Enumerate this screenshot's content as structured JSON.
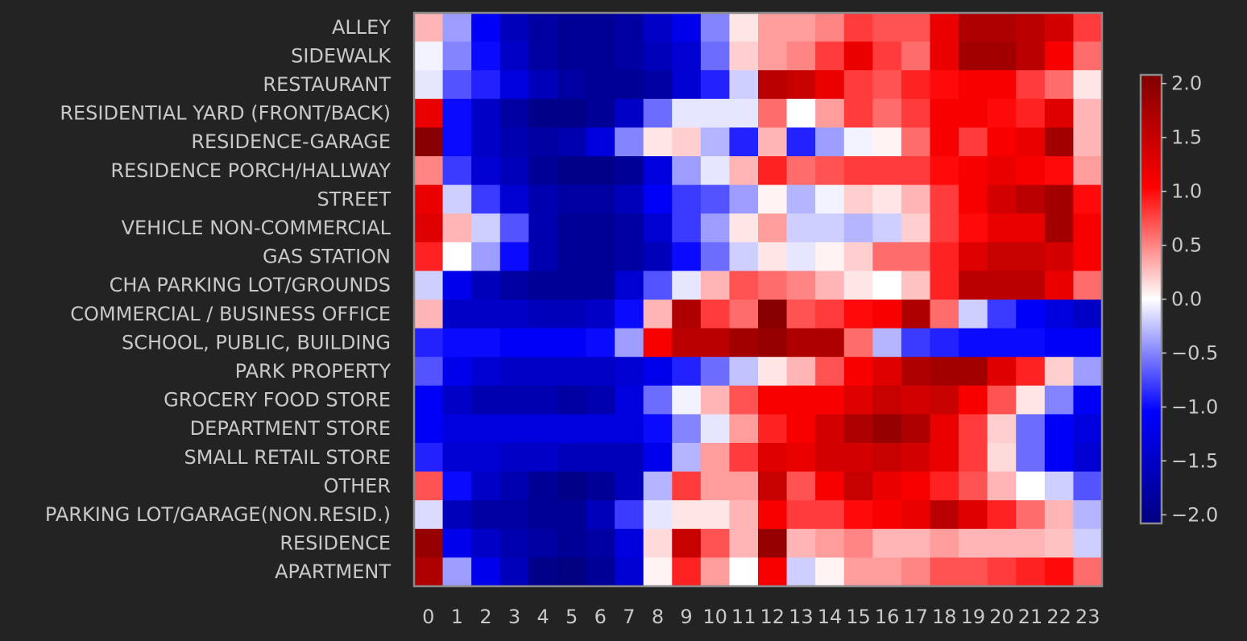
{
  "chart_data": {
    "type": "heatmap",
    "title": "",
    "xlabel": "",
    "ylabel": "",
    "x_categories": [
      "0",
      "1",
      "2",
      "3",
      "4",
      "5",
      "6",
      "7",
      "8",
      "9",
      "10",
      "11",
      "12",
      "13",
      "14",
      "15",
      "16",
      "17",
      "18",
      "19",
      "20",
      "21",
      "22",
      "23"
    ],
    "y_categories": [
      "ALLEY",
      "SIDEWALK",
      "RESTAURANT",
      "RESIDENTIAL YARD (FRONT/BACK)",
      "RESIDENCE-GARAGE",
      "RESIDENCE PORCH/HALLWAY",
      "STREET",
      "VEHICLE NON-COMMERCIAL",
      "GAS STATION",
      "CHA PARKING LOT/GROUNDS",
      "COMMERCIAL / BUSINESS OFFICE",
      "SCHOOL, PUBLIC, BUILDING",
      "PARK PROPERTY",
      "GROCERY FOOD STORE",
      "DEPARTMENT STORE",
      "SMALL RETAIL STORE",
      "OTHER",
      "PARKING LOT/GARAGE(NON.RESID.)",
      "RESIDENCE",
      "APARTMENT"
    ],
    "values": [
      [
        0.3,
        -0.4,
        -1.1,
        -1.6,
        -1.8,
        -1.9,
        -1.9,
        -1.8,
        -1.5,
        -1.2,
        -0.5,
        0.1,
        0.4,
        0.4,
        0.5,
        0.8,
        0.7,
        0.7,
        1.2,
        1.7,
        1.7,
        1.6,
        1.4,
        0.8
      ],
      [
        -0.05,
        -0.5,
        -1.0,
        -1.5,
        -1.8,
        -1.9,
        -1.9,
        -1.8,
        -1.6,
        -1.4,
        -0.6,
        0.2,
        0.4,
        0.5,
        0.8,
        1.2,
        0.8,
        0.6,
        1.2,
        1.8,
        1.8,
        1.6,
        1.1,
        0.6
      ],
      [
        -0.1,
        -0.7,
        -0.9,
        -1.3,
        -1.6,
        -1.8,
        -1.9,
        -1.9,
        -1.8,
        -1.4,
        -0.9,
        -0.2,
        1.6,
        1.5,
        1.2,
        0.8,
        0.7,
        0.9,
        1.0,
        1.1,
        1.1,
        0.8,
        0.6,
        0.1
      ],
      [
        1.2,
        -1.0,
        -1.5,
        -1.8,
        -2.0,
        -2.0,
        -1.9,
        -1.5,
        -0.6,
        -0.1,
        -0.1,
        -0.1,
        0.6,
        0.0,
        0.4,
        0.8,
        0.6,
        0.8,
        1.1,
        1.1,
        1.0,
        0.9,
        1.3,
        0.3
      ],
      [
        2.0,
        -1.0,
        -1.5,
        -1.7,
        -1.8,
        -1.7,
        -1.3,
        -0.5,
        0.1,
        0.2,
        -0.3,
        -0.9,
        0.3,
        -0.9,
        -0.4,
        -0.05,
        0.05,
        0.6,
        1.1,
        0.8,
        1.1,
        1.2,
        1.8,
        0.3
      ],
      [
        0.5,
        -0.8,
        -1.4,
        -1.6,
        -1.9,
        -2.0,
        -2.0,
        -1.9,
        -1.3,
        -0.4,
        -0.1,
        0.3,
        0.9,
        0.6,
        0.7,
        0.8,
        0.8,
        0.8,
        1.0,
        1.1,
        1.2,
        1.1,
        1.0,
        0.4
      ],
      [
        1.2,
        -0.2,
        -0.8,
        -1.4,
        -1.7,
        -1.8,
        -1.8,
        -1.6,
        -1.1,
        -0.8,
        -0.7,
        -0.4,
        0.05,
        -0.3,
        -0.05,
        0.2,
        0.1,
        0.3,
        0.8,
        1.1,
        1.4,
        1.6,
        1.8,
        1.0
      ],
      [
        1.3,
        0.3,
        -0.2,
        -0.7,
        -1.7,
        -1.9,
        -1.9,
        -1.8,
        -1.4,
        -0.8,
        -0.4,
        0.1,
        0.4,
        -0.2,
        -0.2,
        -0.3,
        -0.2,
        0.2,
        0.8,
        1.0,
        1.2,
        1.2,
        1.8,
        1.1
      ],
      [
        0.9,
        0.0,
        -0.4,
        -1.0,
        -1.7,
        -1.9,
        -1.9,
        -1.8,
        -1.6,
        -1.0,
        -0.6,
        -0.2,
        0.1,
        -0.1,
        0.05,
        0.2,
        0.6,
        0.6,
        0.9,
        1.3,
        1.5,
        1.5,
        1.4,
        1.1
      ],
      [
        -0.2,
        -1.2,
        -1.6,
        -1.8,
        -1.9,
        -1.9,
        -1.9,
        -1.4,
        -0.7,
        -0.1,
        0.3,
        0.7,
        0.6,
        0.5,
        0.3,
        0.1,
        0.0,
        0.25,
        0.9,
        1.6,
        1.6,
        1.6,
        1.2,
        0.6
      ],
      [
        0.3,
        -1.5,
        -1.5,
        -1.5,
        -1.6,
        -1.6,
        -1.5,
        -1.0,
        0.3,
        1.7,
        0.8,
        0.6,
        2.0,
        0.7,
        0.8,
        1.0,
        1.1,
        1.7,
        0.6,
        -0.2,
        -0.8,
        -1.1,
        -1.3,
        -1.5
      ],
      [
        -0.9,
        -1.0,
        -1.0,
        -1.1,
        -1.1,
        -1.1,
        -1.0,
        -0.4,
        1.1,
        1.6,
        1.6,
        1.8,
        1.9,
        1.7,
        1.7,
        0.6,
        -0.3,
        -0.8,
        -0.9,
        -1.0,
        -1.0,
        -1.0,
        -1.1,
        -1.1
      ],
      [
        -0.7,
        -1.2,
        -1.4,
        -1.5,
        -1.5,
        -1.5,
        -1.5,
        -1.4,
        -1.2,
        -0.9,
        -0.6,
        -0.25,
        0.1,
        0.3,
        0.7,
        1.1,
        1.3,
        1.7,
        1.8,
        1.8,
        1.3,
        0.9,
        0.2,
        -0.4
      ],
      [
        -1.1,
        -1.5,
        -1.7,
        -1.7,
        -1.7,
        -1.8,
        -1.7,
        -1.3,
        -0.6,
        -0.05,
        0.3,
        0.7,
        1.1,
        1.1,
        1.1,
        1.3,
        1.5,
        1.4,
        1.5,
        1.1,
        0.7,
        0.1,
        -0.5,
        -1.1
      ],
      [
        -1.1,
        -1.3,
        -1.3,
        -1.3,
        -1.3,
        -1.3,
        -1.3,
        -1.3,
        -1.0,
        -0.5,
        -0.1,
        0.4,
        0.9,
        1.1,
        1.4,
        1.7,
        1.9,
        1.7,
        1.2,
        0.8,
        0.2,
        -0.6,
        -1.1,
        -1.3
      ],
      [
        -0.9,
        -1.4,
        -1.4,
        -1.5,
        -1.5,
        -1.6,
        -1.6,
        -1.6,
        -1.2,
        -0.3,
        0.4,
        0.8,
        1.3,
        1.2,
        1.4,
        1.4,
        1.5,
        1.4,
        1.2,
        0.8,
        0.15,
        -0.6,
        -1.1,
        -1.4
      ],
      [
        0.7,
        -1.0,
        -1.5,
        -1.7,
        -1.9,
        -2.0,
        -1.9,
        -1.6,
        -0.3,
        0.8,
        0.4,
        0.4,
        1.5,
        0.7,
        1.1,
        1.5,
        1.2,
        1.1,
        0.9,
        0.7,
        0.3,
        0.0,
        -0.2,
        -0.7
      ],
      [
        -0.15,
        -1.6,
        -1.8,
        -1.8,
        -1.9,
        -1.9,
        -1.6,
        -0.8,
        -0.1,
        0.1,
        0.1,
        0.3,
        1.1,
        0.8,
        0.8,
        1.0,
        1.1,
        1.2,
        1.6,
        1.3,
        0.9,
        0.6,
        0.3,
        -0.3
      ],
      [
        1.9,
        -1.2,
        -1.5,
        -1.7,
        -1.8,
        -1.9,
        -1.8,
        -1.3,
        0.15,
        1.5,
        0.7,
        0.3,
        1.9,
        0.3,
        0.4,
        0.5,
        0.3,
        0.3,
        0.4,
        0.3,
        0.3,
        0.3,
        0.25,
        -0.2
      ],
      [
        1.7,
        -0.4,
        -1.2,
        -1.6,
        -2.0,
        -2.1,
        -1.9,
        -1.4,
        0.05,
        0.9,
        0.4,
        0.0,
        1.1,
        -0.2,
        0.05,
        0.4,
        0.4,
        0.5,
        0.7,
        0.7,
        0.8,
        0.9,
        1.0,
        0.6
      ]
    ],
    "colorscale": "bwr",
    "vmin": -2.08,
    "vmax": 2.08,
    "colorbar_ticks": [
      "2.0",
      "1.5",
      "1.0",
      "0.5",
      "0.0",
      "−0.5",
      "−1.0",
      "−1.5",
      "−2.0"
    ],
    "colorbar_tick_values": [
      2.0,
      1.5,
      1.0,
      0.5,
      0.0,
      -0.5,
      -1.0,
      -1.5,
      -2.0
    ],
    "grid": false,
    "colors": {
      "background": "#232323",
      "text": "#c8c8c8",
      "frame": "#8a8a8a"
    }
  }
}
